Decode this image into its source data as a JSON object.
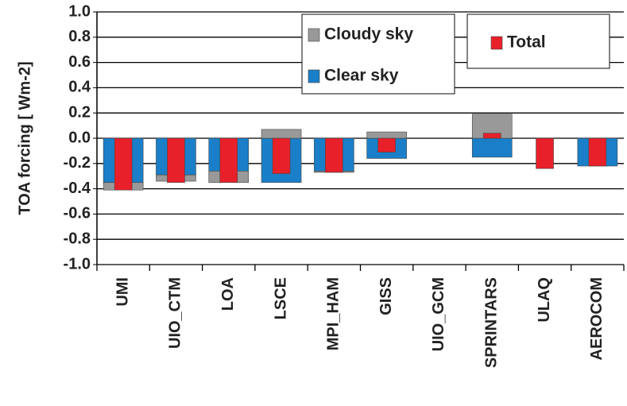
{
  "chart_data": {
    "type": "bar",
    "y_label": "TOA forcing [ Wm-2]",
    "categories": [
      "UMI",
      "UIO_CTM",
      "LOA",
      "LSCE",
      "MPI_HAM",
      "GISS",
      "UIO_GCM",
      "SPRINTARS",
      "ULAQ",
      "AEROCOM"
    ],
    "series": [
      {
        "name": "Cloudy sky",
        "color": "#999999",
        "values": [
          -0.06,
          -0.05,
          -0.09,
          0.07,
          -0.01,
          0.05,
          null,
          0.19,
          null,
          null
        ]
      },
      {
        "name": "Clear sky",
        "color": "#1a7fc8",
        "values": [
          -0.35,
          -0.29,
          -0.26,
          -0.35,
          -0.26,
          -0.16,
          null,
          -0.15,
          null,
          -0.22
        ]
      },
      {
        "name": "Total",
        "color": "#e8202a",
        "values": [
          -0.41,
          -0.35,
          -0.35,
          -0.28,
          -0.27,
          -0.11,
          null,
          0.04,
          -0.24,
          -0.22
        ]
      }
    ],
    "ylim": [
      -1,
      1
    ],
    "yticks": [
      {
        "value": -1,
        "label": "-1.0"
      },
      -0.8,
      -0.6,
      -0.4,
      -0.2,
      {
        "value": 0,
        "label": "0.0"
      },
      0.2,
      0.4,
      0.6,
      0.8,
      {
        "value": 1,
        "label": "1.0"
      }
    ],
    "grid": true
  }
}
